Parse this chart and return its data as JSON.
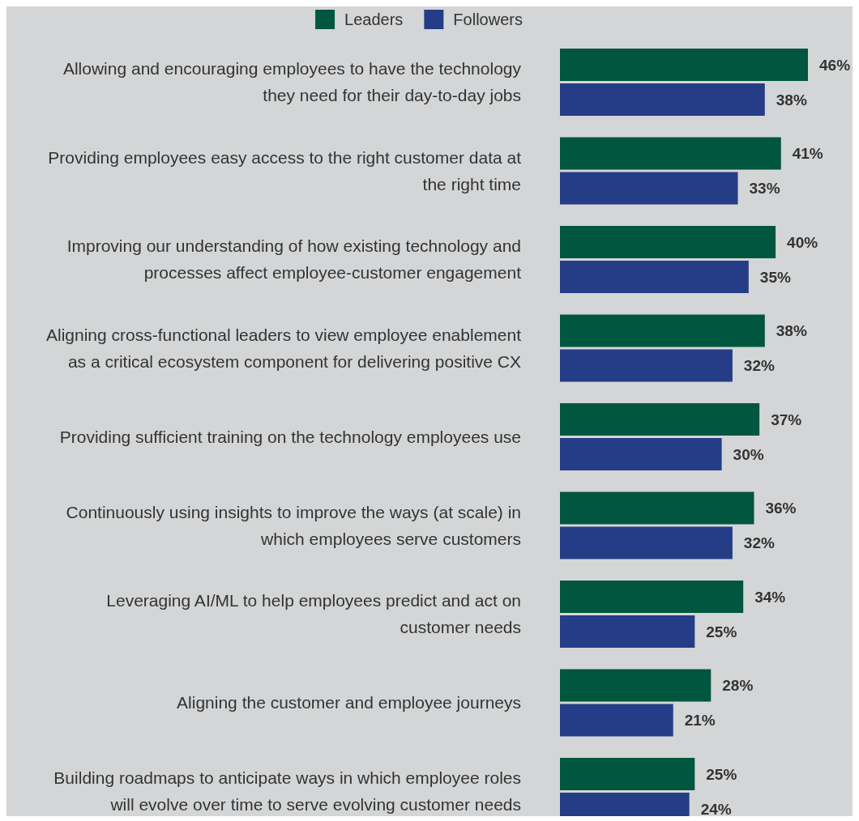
{
  "chart_data": {
    "type": "bar",
    "orientation": "horizontal",
    "legend": "top",
    "categories": [
      "Allowing and encouraging employees to have the technology they need for their day-to-day jobs",
      "Providing employees easy access to the right customer data at the right time",
      "Improving our understanding of how existing technology and processes affect employee-customer engagement",
      "Aligning cross-functional leaders to view employee enablement as a critical ecosystem component for delivering positive CX",
      "Providing sufficient training on the technology employees use",
      "Continuously using insights to improve the ways (at scale) in which employees serve customers",
      "Leveraging AI/ML to help employees predict and act on customer needs",
      "Aligning the customer and employee journeys",
      "Building roadmaps to anticipate ways in which employee roles will evolve over time to serve evolving customer needs"
    ],
    "series": [
      {
        "name": "Leaders",
        "color": "#00563f",
        "values": [
          46,
          41,
          40,
          38,
          37,
          36,
          34,
          28,
          25
        ],
        "value_labels": [
          "46%",
          "41%",
          "40%",
          "38%",
          "37%",
          "36%",
          "34%",
          "28%",
          "25%"
        ]
      },
      {
        "name": "Followers",
        "color": "#243d86",
        "values": [
          38,
          33,
          35,
          32,
          30,
          32,
          25,
          21,
          24
        ],
        "value_labels": [
          "38%",
          "33%",
          "35%",
          "32%",
          "30%",
          "32%",
          "25%",
          "21%",
          "24%"
        ]
      }
    ]
  }
}
